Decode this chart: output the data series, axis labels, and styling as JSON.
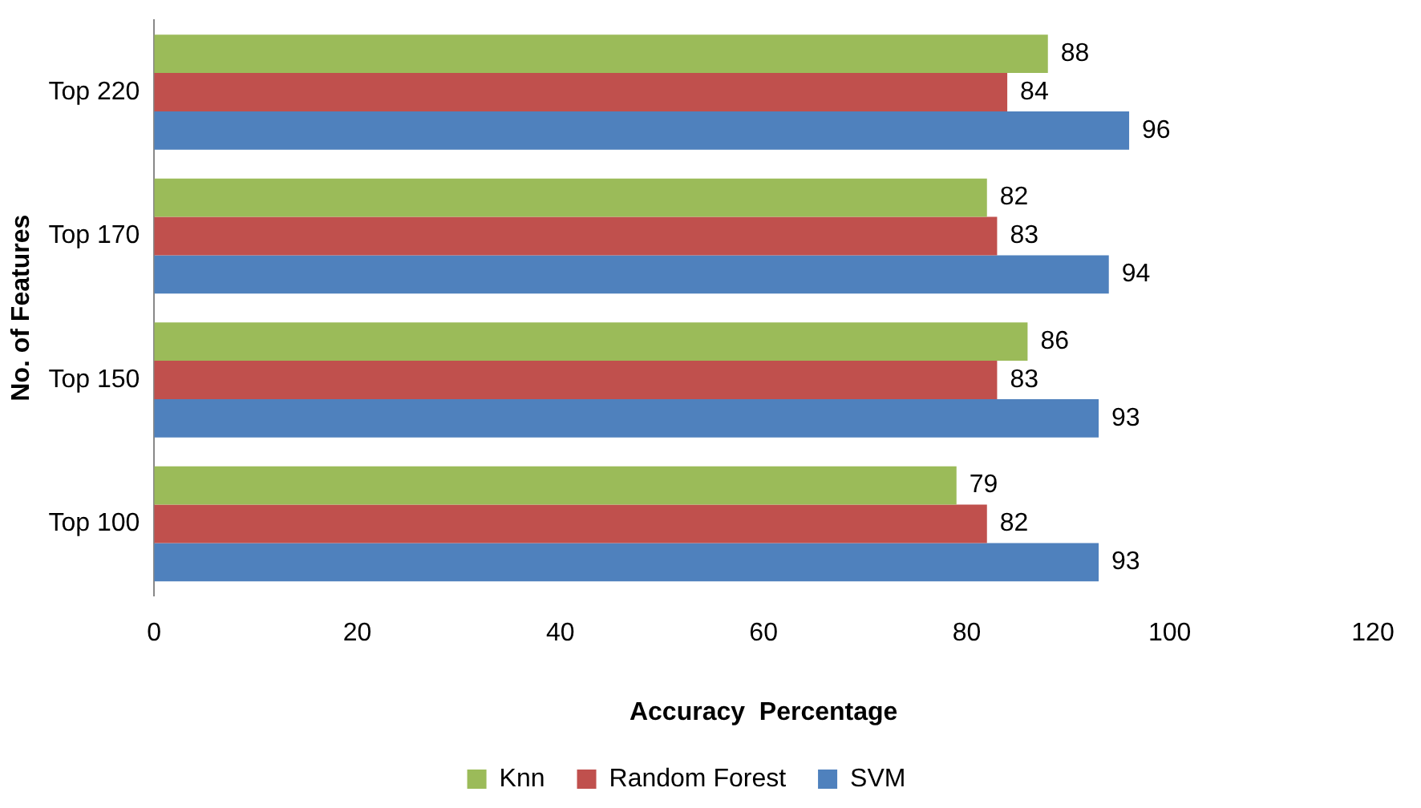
{
  "chart_data": {
    "type": "bar",
    "orientation": "horizontal",
    "xlabel": "Accuracy  Percentage",
    "ylabel": "No. of Features",
    "categories": [
      "Top 220",
      "Top 170",
      "Top 150",
      "Top 100"
    ],
    "series": [
      {
        "name": "Knn",
        "color": "#9bbb59",
        "values": [
          88,
          82,
          86,
          79
        ]
      },
      {
        "name": "Random Forest",
        "color": "#c0504d",
        "values": [
          84,
          83,
          83,
          82
        ]
      },
      {
        "name": "SVM",
        "color": "#4f81bd",
        "values": [
          96,
          94,
          93,
          93
        ]
      }
    ],
    "xlim": [
      0,
      120
    ],
    "xticks": [
      0,
      20,
      40,
      60,
      80,
      100,
      120
    ],
    "grid": false,
    "legend": "bottom",
    "data_labels": true
  }
}
